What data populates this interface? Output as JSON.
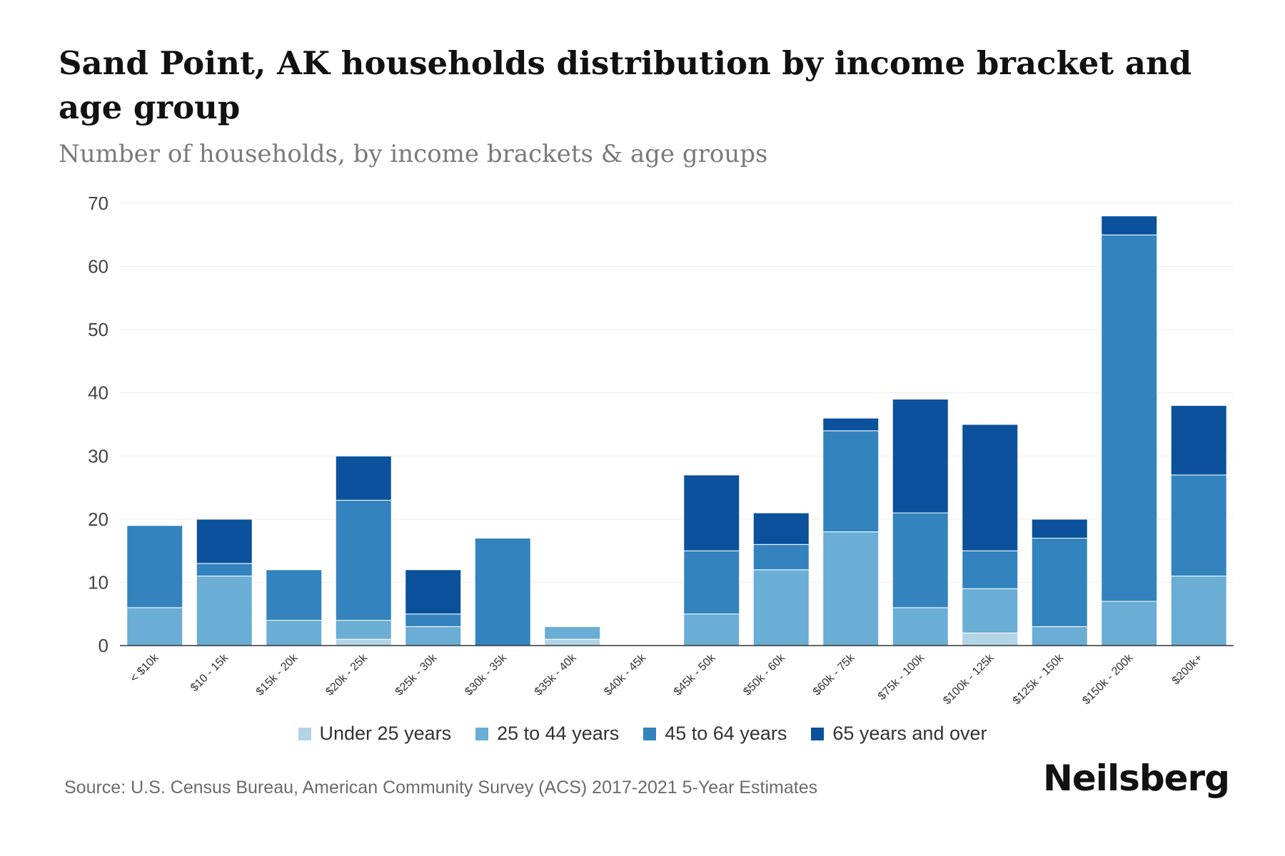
{
  "header": {
    "title": "Sand Point, AK households distribution by income bracket and age group",
    "subtitle": "Number of households, by income brackets & age groups"
  },
  "footer": {
    "source": "Source: U.S. Census Bureau, American Community Survey (ACS) 2017-2021 5-Year Estimates",
    "brand": "Neilsberg"
  },
  "chart_data": {
    "type": "bar",
    "stacked": true,
    "title": "Sand Point, AK households distribution by income bracket and age group",
    "subtitle": "Number of households, by income brackets & age groups",
    "xlabel": "",
    "ylabel": "",
    "ylim": [
      0,
      70
    ],
    "yticks": [
      0,
      10,
      20,
      30,
      40,
      50,
      60,
      70
    ],
    "grid": true,
    "legend_position": "bottom",
    "categories": [
      "< $10k",
      "$10 - 15k",
      "$15k - 20k",
      "$20k - 25k",
      "$25k - 30k",
      "$30k - 35k",
      "$35k - 40k",
      "$40k - 45k",
      "$45k - 50k",
      "$50k - 60k",
      "$60k - 75k",
      "$75k - 100k",
      "$100k - 125k",
      "$125k - 150k",
      "$150k - 200k",
      "$200k+"
    ],
    "series": [
      {
        "name": "Under 25 years",
        "color": "#b3d4e6",
        "values": [
          0,
          0,
          0,
          1,
          0,
          0,
          1,
          0,
          0,
          0,
          0,
          0,
          2,
          0,
          0,
          0
        ]
      },
      {
        "name": "25 to 44 years",
        "color": "#6aadd5",
        "values": [
          6,
          11,
          4,
          3,
          3,
          0,
          2,
          0,
          5,
          12,
          18,
          6,
          7,
          3,
          7,
          11
        ]
      },
      {
        "name": "45 to 64 years",
        "color": "#3383be",
        "values": [
          13,
          2,
          8,
          19,
          2,
          17,
          0,
          0,
          10,
          4,
          16,
          15,
          6,
          14,
          58,
          16
        ]
      },
      {
        "name": "65 years and over",
        "color": "#0b519b",
        "values": [
          0,
          7,
          0,
          7,
          7,
          0,
          0,
          0,
          12,
          5,
          2,
          18,
          20,
          3,
          3,
          11
        ]
      }
    ]
  }
}
